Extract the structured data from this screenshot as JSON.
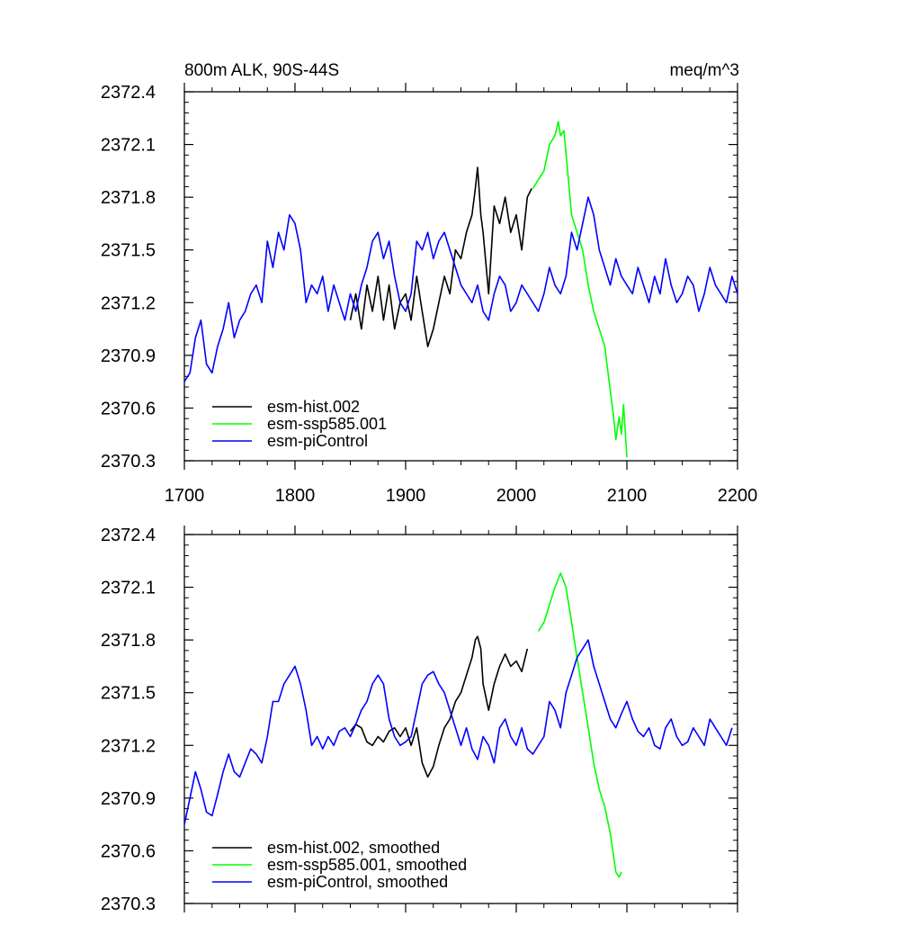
{
  "chart_data": [
    {
      "type": "line",
      "title_left": "800m ALK, 90S-44S",
      "title_right": "meq/m^3",
      "xlim": [
        1700,
        2200
      ],
      "ylim": [
        2370.3,
        2372.4
      ],
      "x_ticks": [
        1700,
        1800,
        1900,
        2000,
        2100,
        2200
      ],
      "x_tick_labels": [
        "1700",
        "1800",
        "1900",
        "2000",
        "2100",
        "2200"
      ],
      "y_ticks": [
        2370.3,
        2370.6,
        2370.9,
        2371.2,
        2371.5,
        2371.8,
        2372.1,
        2372.4
      ],
      "y_tick_labels": [
        "2370.3",
        "2370.6",
        "2370.9",
        "2371.2",
        "2371.5",
        "2371.8",
        "2372.1",
        "2372.4"
      ],
      "legend_position": "bottom-left",
      "series": [
        {
          "name": "esm-hist.002",
          "color": "#000000",
          "x": [
            1850,
            1855,
            1860,
            1865,
            1870,
            1875,
            1880,
            1885,
            1890,
            1895,
            1900,
            1905,
            1910,
            1915,
            1920,
            1925,
            1930,
            1935,
            1940,
            1945,
            1950,
            1955,
            1960,
            1963,
            1965,
            1968,
            1970,
            1975,
            1980,
            1985,
            1990,
            1995,
            2000,
            2005,
            2010,
            2014
          ],
          "values": [
            2371.1,
            2371.25,
            2371.05,
            2371.3,
            2371.15,
            2371.35,
            2371.1,
            2371.3,
            2371.05,
            2371.2,
            2371.25,
            2371.1,
            2371.35,
            2371.15,
            2370.95,
            2371.05,
            2371.2,
            2371.35,
            2371.25,
            2371.5,
            2371.45,
            2371.6,
            2371.7,
            2371.85,
            2371.97,
            2371.7,
            2371.6,
            2371.25,
            2371.75,
            2371.65,
            2371.8,
            2371.6,
            2371.7,
            2371.5,
            2371.8,
            2371.85
          ]
        },
        {
          "name": "esm-ssp585.001",
          "color": "#00ff00",
          "x": [
            2015,
            2020,
            2025,
            2030,
            2035,
            2038,
            2040,
            2043,
            2045,
            2050,
            2055,
            2060,
            2065,
            2070,
            2075,
            2080,
            2085,
            2088,
            2090,
            2093,
            2095,
            2097,
            2100
          ],
          "values": [
            2371.85,
            2371.9,
            2371.95,
            2372.1,
            2372.15,
            2372.23,
            2372.15,
            2372.18,
            2372.05,
            2371.7,
            2371.6,
            2371.5,
            2371.3,
            2371.15,
            2371.05,
            2370.95,
            2370.7,
            2370.55,
            2370.42,
            2370.55,
            2370.45,
            2370.62,
            2370.32
          ]
        },
        {
          "name": "esm-piControl",
          "color": "#0000ff",
          "x": [
            1700,
            1705,
            1710,
            1715,
            1720,
            1725,
            1730,
            1735,
            1740,
            1745,
            1750,
            1755,
            1760,
            1765,
            1770,
            1775,
            1780,
            1785,
            1790,
            1795,
            1800,
            1805,
            1810,
            1815,
            1820,
            1825,
            1830,
            1835,
            1840,
            1845,
            1850,
            1855,
            1860,
            1865,
            1870,
            1875,
            1880,
            1885,
            1890,
            1895,
            1900,
            1905,
            1910,
            1915,
            1920,
            1925,
            1930,
            1935,
            1940,
            1945,
            1950,
            1955,
            1960,
            1965,
            1970,
            1975,
            1980,
            1985,
            1990,
            1995,
            2000,
            2005,
            2010,
            2015,
            2020,
            2025,
            2030,
            2035,
            2040,
            2045,
            2050,
            2055,
            2060,
            2065,
            2070,
            2075,
            2080,
            2085,
            2090,
            2095,
            2100,
            2105,
            2110,
            2115,
            2120,
            2125,
            2130,
            2135,
            2140,
            2145,
            2150,
            2155,
            2160,
            2165,
            2170,
            2175,
            2180,
            2185,
            2190,
            2195,
            2200
          ],
          "values": [
            2370.75,
            2370.8,
            2371.0,
            2371.1,
            2370.85,
            2370.8,
            2370.95,
            2371.05,
            2371.2,
            2371.0,
            2371.1,
            2371.15,
            2371.25,
            2371.3,
            2371.2,
            2371.55,
            2371.4,
            2371.6,
            2371.5,
            2371.7,
            2371.65,
            2371.5,
            2371.2,
            2371.3,
            2371.25,
            2371.35,
            2371.15,
            2371.3,
            2371.2,
            2371.1,
            2371.25,
            2371.15,
            2371.3,
            2371.4,
            2371.55,
            2371.6,
            2371.45,
            2371.55,
            2371.35,
            2371.2,
            2371.15,
            2371.25,
            2371.55,
            2371.5,
            2371.6,
            2371.45,
            2371.55,
            2371.6,
            2371.5,
            2371.4,
            2371.3,
            2371.25,
            2371.2,
            2371.3,
            2371.15,
            2371.1,
            2371.25,
            2371.35,
            2371.3,
            2371.15,
            2371.2,
            2371.3,
            2371.25,
            2371.2,
            2371.15,
            2371.25,
            2371.4,
            2371.3,
            2371.25,
            2371.35,
            2371.6,
            2371.5,
            2371.65,
            2371.8,
            2371.7,
            2371.5,
            2371.4,
            2371.3,
            2371.45,
            2371.35,
            2371.3,
            2371.25,
            2371.4,
            2371.3,
            2371.2,
            2371.35,
            2371.25,
            2371.45,
            2371.3,
            2371.2,
            2371.25,
            2371.35,
            2371.3,
            2371.15,
            2371.25,
            2371.4,
            2371.3,
            2371.25,
            2371.2,
            2371.35,
            2371.25
          ]
        }
      ]
    },
    {
      "type": "line",
      "xlim": [
        1700,
        2200
      ],
      "ylim": [
        2370.3,
        2372.4
      ],
      "x_ticks": [
        1700,
        1800,
        1900,
        2000,
        2100,
        2200
      ],
      "y_ticks": [
        2370.3,
        2370.6,
        2370.9,
        2371.2,
        2371.5,
        2371.8,
        2372.1,
        2372.4
      ],
      "y_tick_labels": [
        "2370.3",
        "2370.6",
        "2370.9",
        "2371.2",
        "2371.5",
        "2371.8",
        "2372.1",
        "2372.4"
      ],
      "legend_position": "bottom-left",
      "series": [
        {
          "name": "esm-hist.002, smoothed",
          "color": "#000000",
          "x": [
            1850,
            1855,
            1860,
            1865,
            1870,
            1875,
            1880,
            1885,
            1890,
            1895,
            1900,
            1905,
            1910,
            1915,
            1920,
            1925,
            1930,
            1935,
            1940,
            1945,
            1950,
            1955,
            1960,
            1963,
            1965,
            1968,
            1970,
            1975,
            1980,
            1985,
            1990,
            1995,
            2000,
            2005,
            2010
          ],
          "values": [
            2371.28,
            2371.32,
            2371.3,
            2371.22,
            2371.2,
            2371.25,
            2371.22,
            2371.28,
            2371.3,
            2371.25,
            2371.3,
            2371.2,
            2371.3,
            2371.1,
            2371.02,
            2371.08,
            2371.2,
            2371.3,
            2371.35,
            2371.45,
            2371.5,
            2371.6,
            2371.7,
            2371.8,
            2371.82,
            2371.75,
            2371.55,
            2371.4,
            2371.55,
            2371.65,
            2371.72,
            2371.65,
            2371.68,
            2371.62,
            2371.75
          ]
        },
        {
          "name": "esm-ssp585.001, smoothed",
          "color": "#00ff00",
          "x": [
            2020,
            2025,
            2030,
            2035,
            2040,
            2045,
            2050,
            2055,
            2060,
            2065,
            2070,
            2075,
            2080,
            2085,
            2090,
            2093,
            2095
          ],
          "values": [
            2371.85,
            2371.9,
            2372.0,
            2372.1,
            2372.18,
            2372.1,
            2371.9,
            2371.7,
            2371.5,
            2371.3,
            2371.1,
            2370.95,
            2370.85,
            2370.7,
            2370.48,
            2370.45,
            2370.48
          ]
        },
        {
          "name": "esm-piControl, smoothed",
          "color": "#0000ff",
          "x": [
            1700,
            1705,
            1710,
            1715,
            1720,
            1725,
            1730,
            1735,
            1740,
            1745,
            1750,
            1755,
            1760,
            1765,
            1770,
            1775,
            1780,
            1785,
            1790,
            1795,
            1800,
            1805,
            1810,
            1815,
            1820,
            1825,
            1830,
            1835,
            1840,
            1845,
            1850,
            1855,
            1860,
            1865,
            1870,
            1875,
            1880,
            1885,
            1890,
            1895,
            1900,
            1905,
            1910,
            1915,
            1920,
            1925,
            1930,
            1935,
            1940,
            1945,
            1950,
            1955,
            1960,
            1965,
            1970,
            1975,
            1980,
            1985,
            1990,
            1995,
            2000,
            2005,
            2010,
            2015,
            2020,
            2025,
            2030,
            2035,
            2040,
            2045,
            2050,
            2055,
            2060,
            2065,
            2070,
            2075,
            2080,
            2085,
            2090,
            2095,
            2100,
            2105,
            2110,
            2115,
            2120,
            2125,
            2130,
            2135,
            2140,
            2145,
            2150,
            2155,
            2160,
            2165,
            2170,
            2175,
            2180,
            2185,
            2190,
            2195
          ],
          "values": [
            2370.75,
            2370.9,
            2371.05,
            2370.95,
            2370.82,
            2370.8,
            2370.92,
            2371.05,
            2371.15,
            2371.05,
            2371.02,
            2371.1,
            2371.18,
            2371.15,
            2371.1,
            2371.25,
            2371.45,
            2371.45,
            2371.55,
            2371.6,
            2371.65,
            2371.55,
            2371.4,
            2371.2,
            2371.25,
            2371.18,
            2371.25,
            2371.2,
            2371.28,
            2371.3,
            2371.25,
            2371.32,
            2371.4,
            2371.45,
            2371.55,
            2371.6,
            2371.55,
            2371.35,
            2371.25,
            2371.2,
            2371.22,
            2371.25,
            2371.4,
            2371.55,
            2371.6,
            2371.62,
            2371.55,
            2371.5,
            2371.4,
            2371.3,
            2371.2,
            2371.3,
            2371.18,
            2371.12,
            2371.25,
            2371.2,
            2371.1,
            2371.3,
            2371.35,
            2371.25,
            2371.2,
            2371.3,
            2371.18,
            2371.15,
            2371.2,
            2371.25,
            2371.45,
            2371.4,
            2371.3,
            2371.5,
            2371.6,
            2371.7,
            2371.75,
            2371.8,
            2371.65,
            2371.55,
            2371.45,
            2371.35,
            2371.3,
            2371.38,
            2371.45,
            2371.35,
            2371.28,
            2371.25,
            2371.3,
            2371.2,
            2371.18,
            2371.3,
            2371.35,
            2371.25,
            2371.2,
            2371.22,
            2371.3,
            2371.25,
            2371.2,
            2371.35,
            2371.3,
            2371.25,
            2371.2,
            2371.3
          ]
        }
      ]
    }
  ]
}
